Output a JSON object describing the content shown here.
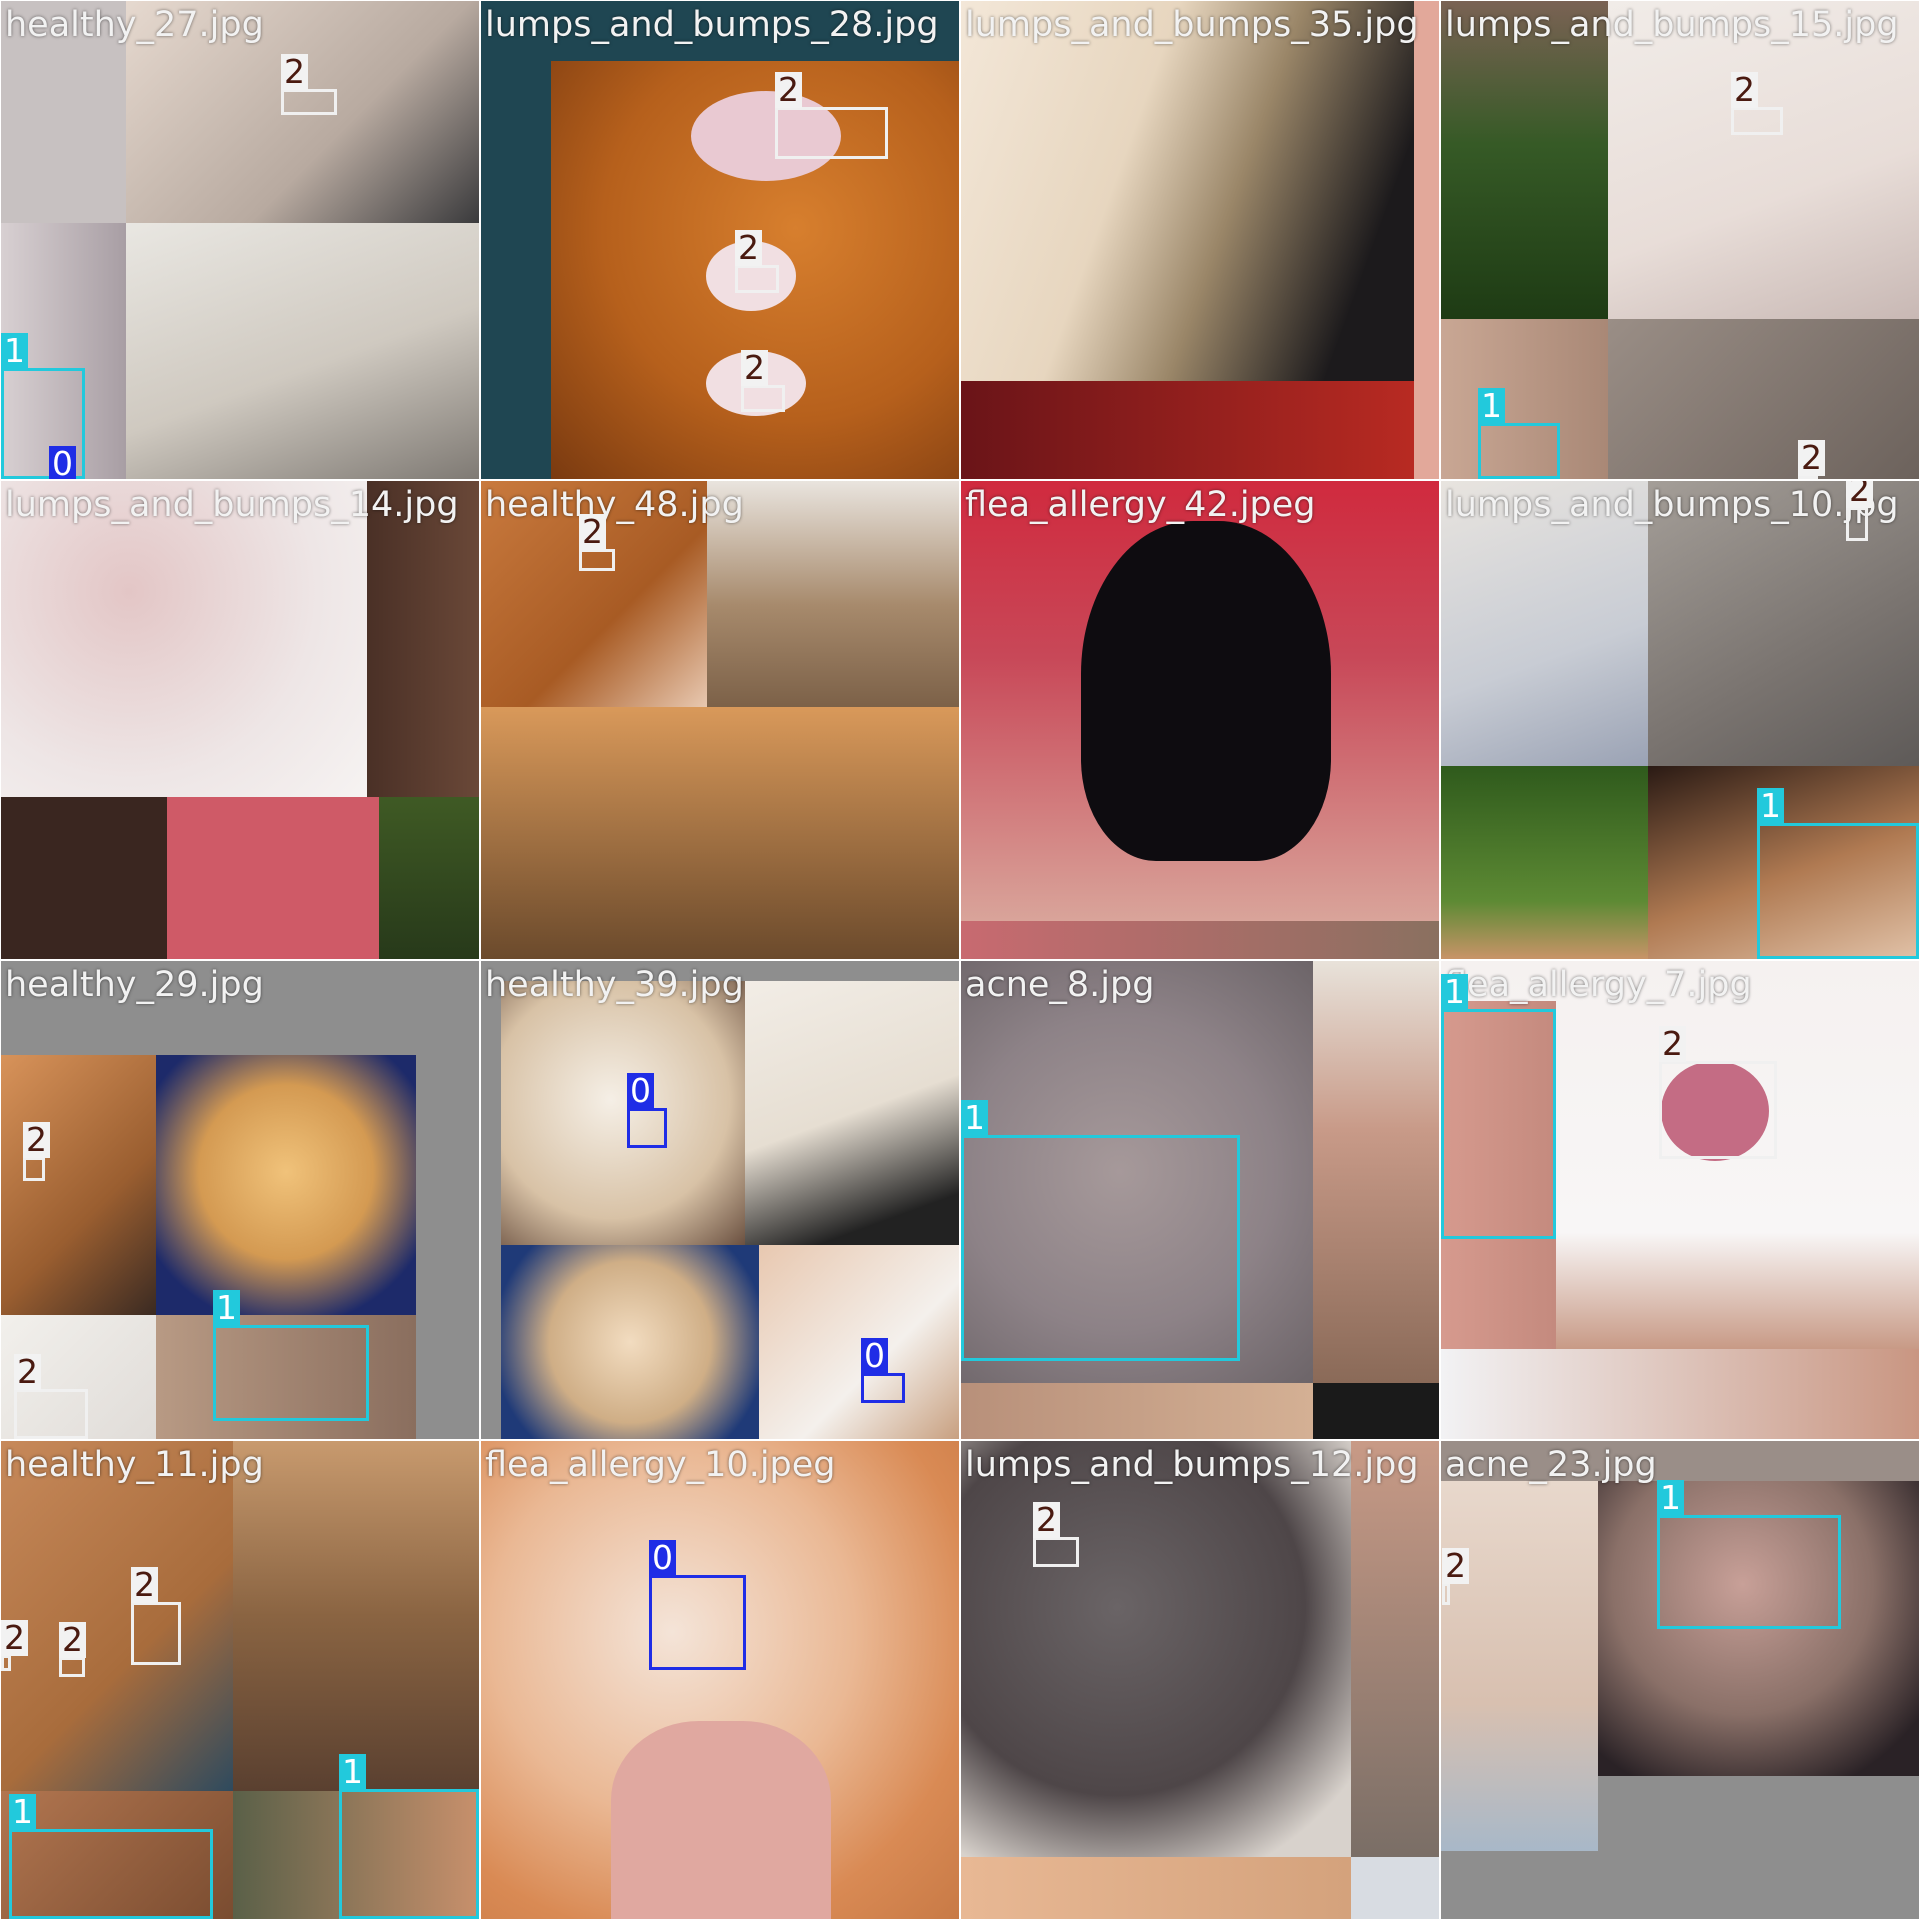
{
  "colors": {
    "class_0": "#1f2de6",
    "class_1": "#22c9dc",
    "class_2": "#f0f0f0",
    "pad_gray": "#8e8e8e"
  },
  "tiles": [
    {
      "filename": "healthy_27.jpg",
      "boxes": [
        {
          "label": "2"
        },
        {
          "label": "1"
        },
        {
          "label": "0"
        }
      ]
    },
    {
      "filename": "lumps_and_bumps_28.jpg",
      "boxes": [
        {
          "label": "2"
        },
        {
          "label": "2"
        },
        {
          "label": "2"
        }
      ]
    },
    {
      "filename": "lumps_and_bumps_35.jpg",
      "boxes": []
    },
    {
      "filename": "lumps_and_bumps_15.jpg",
      "boxes": [
        {
          "label": "2"
        },
        {
          "label": "1"
        },
        {
          "label": "2"
        }
      ]
    },
    {
      "filename": "lumps_and_bumps_14.jpg",
      "boxes": []
    },
    {
      "filename": "healthy_48.jpg",
      "boxes": [
        {
          "label": "2"
        }
      ]
    },
    {
      "filename": "flea_allergy_42.jpeg",
      "boxes": []
    },
    {
      "filename": "lumps_and_bumps_10.jpg",
      "boxes": [
        {
          "label": "2"
        },
        {
          "label": "1"
        }
      ]
    },
    {
      "filename": "healthy_29.jpg",
      "boxes": [
        {
          "label": "2"
        },
        {
          "label": "2"
        },
        {
          "label": "1"
        }
      ]
    },
    {
      "filename": "healthy_39.jpg",
      "boxes": [
        {
          "label": "0"
        },
        {
          "label": "0"
        }
      ]
    },
    {
      "filename": "acne_8.jpg",
      "boxes": [
        {
          "label": "1"
        }
      ]
    },
    {
      "filename": "flea_allergy_7.jpg",
      "boxes": [
        {
          "label": "1"
        },
        {
          "label": "2"
        }
      ]
    },
    {
      "filename": "healthy_11.jpg",
      "boxes": [
        {
          "label": "2"
        },
        {
          "label": "2"
        },
        {
          "label": "2"
        },
        {
          "label": "1"
        },
        {
          "label": "1"
        }
      ]
    },
    {
      "filename": "flea_allergy_10.jpeg",
      "boxes": [
        {
          "label": "0"
        }
      ]
    },
    {
      "filename": "lumps_and_bumps_12.jpg",
      "boxes": [
        {
          "label": "2"
        }
      ]
    },
    {
      "filename": "acne_23.jpg",
      "boxes": [
        {
          "label": "2"
        },
        {
          "label": "1"
        }
      ]
    }
  ]
}
